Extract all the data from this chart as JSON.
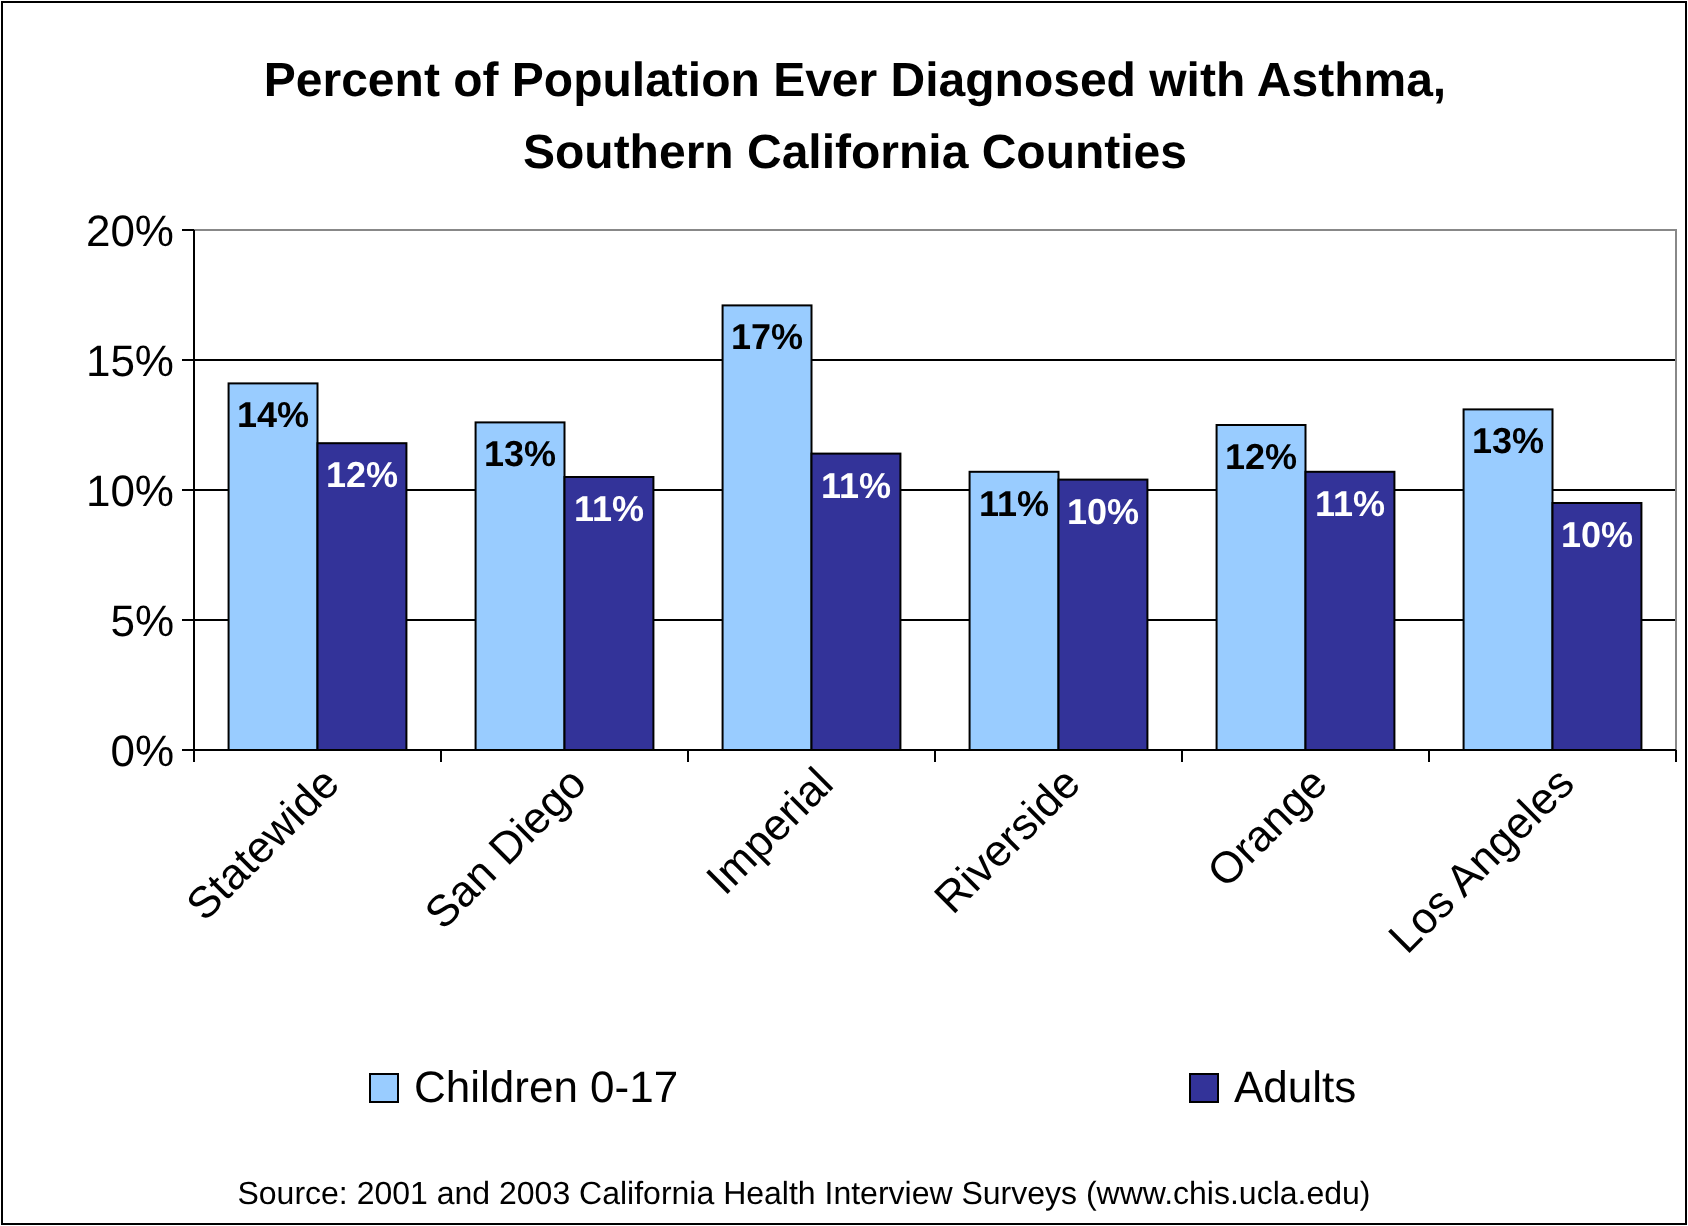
{
  "chart_data": {
    "type": "bar",
    "title": "Percent of Population Ever Diagnosed with Asthma,\nSouthern California Counties",
    "categories": [
      "Statewide",
      "San Diego",
      "Imperial",
      "Riverside",
      "Orange",
      "Los Angeles"
    ],
    "series": [
      {
        "name": "Children 0-17",
        "color": "#99ccff",
        "values": [
          14.1,
          12.6,
          17.1,
          10.7,
          12.5,
          13.1
        ],
        "value_labels": [
          "14%",
          "13%",
          "17%",
          "11%",
          "12%",
          "13%"
        ]
      },
      {
        "name": "Adults",
        "color": "#333399",
        "values": [
          11.8,
          10.5,
          11.4,
          10.4,
          10.7,
          9.5
        ],
        "value_labels": [
          "12%",
          "11%",
          "11%",
          "10%",
          "11%",
          "10%"
        ]
      }
    ],
    "ylim": [
      0,
      20
    ],
    "yticks": [
      {
        "value": 0,
        "label": "0%"
      },
      {
        "value": 5,
        "label": "5%"
      },
      {
        "value": 10,
        "label": "10%"
      },
      {
        "value": 15,
        "label": "15%"
      },
      {
        "value": 20,
        "label": "20%"
      }
    ],
    "grid": "y",
    "legend": "bottom",
    "annotations": [
      "Source: 2001 and 2003 California Health Interview Surveys (www.chis.ucla.edu)"
    ]
  }
}
